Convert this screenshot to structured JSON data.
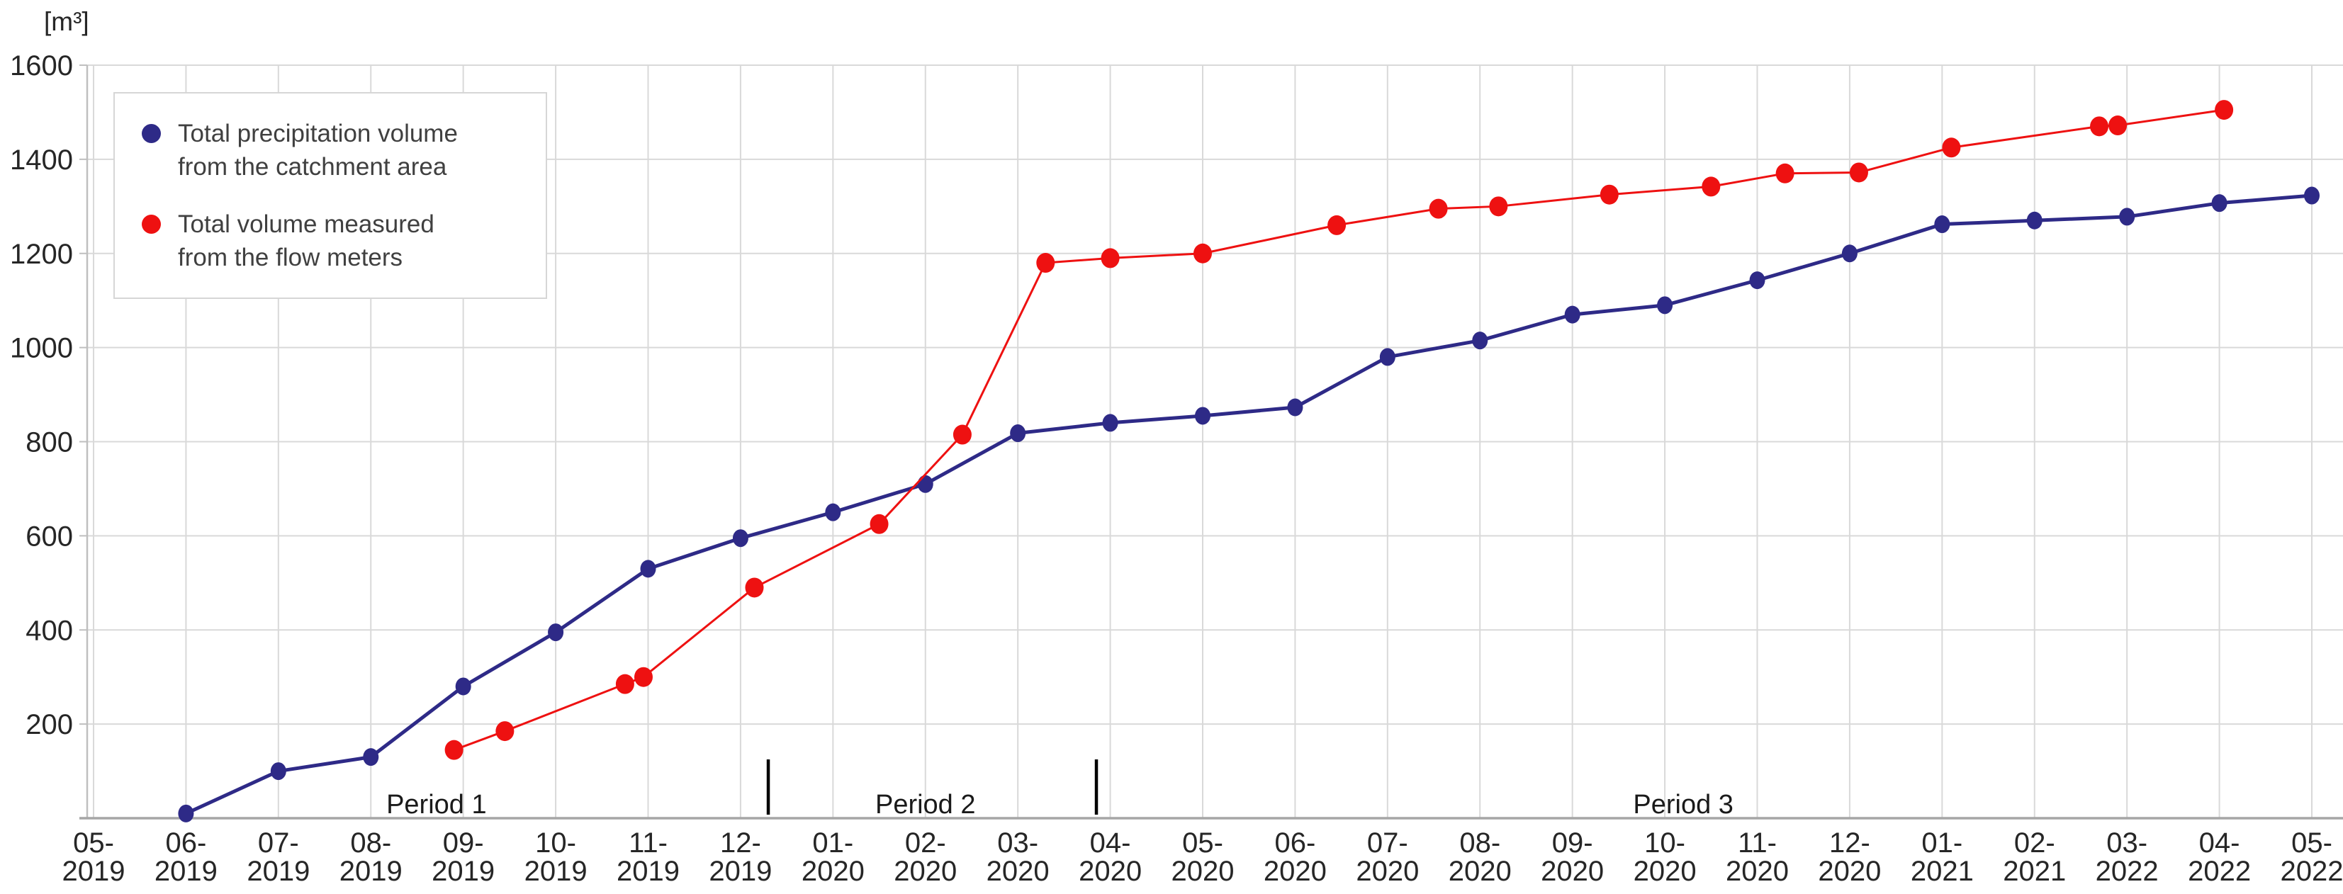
{
  "unit_label": "[m³]",
  "legend": {
    "items": [
      {
        "color": "#2E2A87",
        "lines": [
          "Total precipitation volume",
          "from the catchment area"
        ]
      },
      {
        "color": "#EE1111",
        "lines": [
          "Total volume measured",
          "from the flow meters"
        ]
      }
    ]
  },
  "chart_data": {
    "type": "line",
    "title": "",
    "xlabel": "",
    "ylabel": "[m³]",
    "ylim": [
      0,
      1600
    ],
    "ytick_step": 200,
    "grid": true,
    "legend_position": "top-left",
    "x_categories": [
      "05-2019",
      "06-2019",
      "07-2019",
      "08-2019",
      "09-2019",
      "10-2019",
      "11-2019",
      "12-2019",
      "01-2020",
      "02-2020",
      "03-2020",
      "04-2020",
      "05-2020",
      "06-2020",
      "07-2020",
      "08-2020",
      "09-2020",
      "10-2020",
      "11-2020",
      "12-2020",
      "01-2021",
      "02-2021",
      "03-2022",
      "04-2022",
      "05-2022"
    ],
    "series": [
      {
        "name": "Total precipitation volume from the catchment area",
        "color": "#2E2A87",
        "line_width": 5,
        "marker_rx": 11,
        "marker_ry": 12.5,
        "points": [
          [
            1,
            10
          ],
          [
            2,
            100
          ],
          [
            3,
            130
          ],
          [
            4,
            280
          ],
          [
            5,
            395
          ],
          [
            6,
            530
          ],
          [
            7,
            595
          ],
          [
            8,
            650
          ],
          [
            9,
            710
          ],
          [
            10,
            818
          ],
          [
            11,
            840
          ],
          [
            12,
            855
          ],
          [
            13,
            873
          ],
          [
            14,
            980
          ],
          [
            15,
            1015
          ],
          [
            16,
            1070
          ],
          [
            17,
            1090
          ],
          [
            18,
            1143
          ],
          [
            19,
            1200
          ],
          [
            20,
            1262
          ],
          [
            21,
            1270
          ],
          [
            22,
            1278
          ],
          [
            23,
            1307
          ],
          [
            24,
            1323
          ]
        ]
      },
      {
        "name": "Total volume measured from the flow meters",
        "color": "#EE1111",
        "line_width": 3,
        "marker_rx": 13,
        "marker_ry": 14,
        "points": [
          [
            3.9,
            145
          ],
          [
            4.45,
            185
          ],
          [
            5.75,
            285
          ],
          [
            5.95,
            300
          ],
          [
            7.15,
            490
          ],
          [
            8.5,
            625
          ],
          [
            9.4,
            815
          ],
          [
            10.3,
            1180
          ],
          [
            11,
            1190
          ],
          [
            12,
            1200
          ],
          [
            13.45,
            1260
          ],
          [
            14.55,
            1295
          ],
          [
            15.2,
            1300
          ],
          [
            16.4,
            1325
          ],
          [
            17.5,
            1342
          ],
          [
            18.3,
            1370
          ],
          [
            19.1,
            1372
          ],
          [
            20.1,
            1425
          ],
          [
            21.7,
            1470
          ],
          [
            21.9,
            1472
          ],
          [
            23.05,
            1505
          ]
        ]
      }
    ],
    "annotations": {
      "period_labels": [
        {
          "text": "Period 1",
          "x": 3.71
        },
        {
          "text": "Period 2",
          "x": 9.0
        },
        {
          "text": "Period 3",
          "x": 17.2
        }
      ],
      "separators": [
        {
          "x": 7.3
        },
        {
          "x": 10.85
        }
      ]
    }
  }
}
